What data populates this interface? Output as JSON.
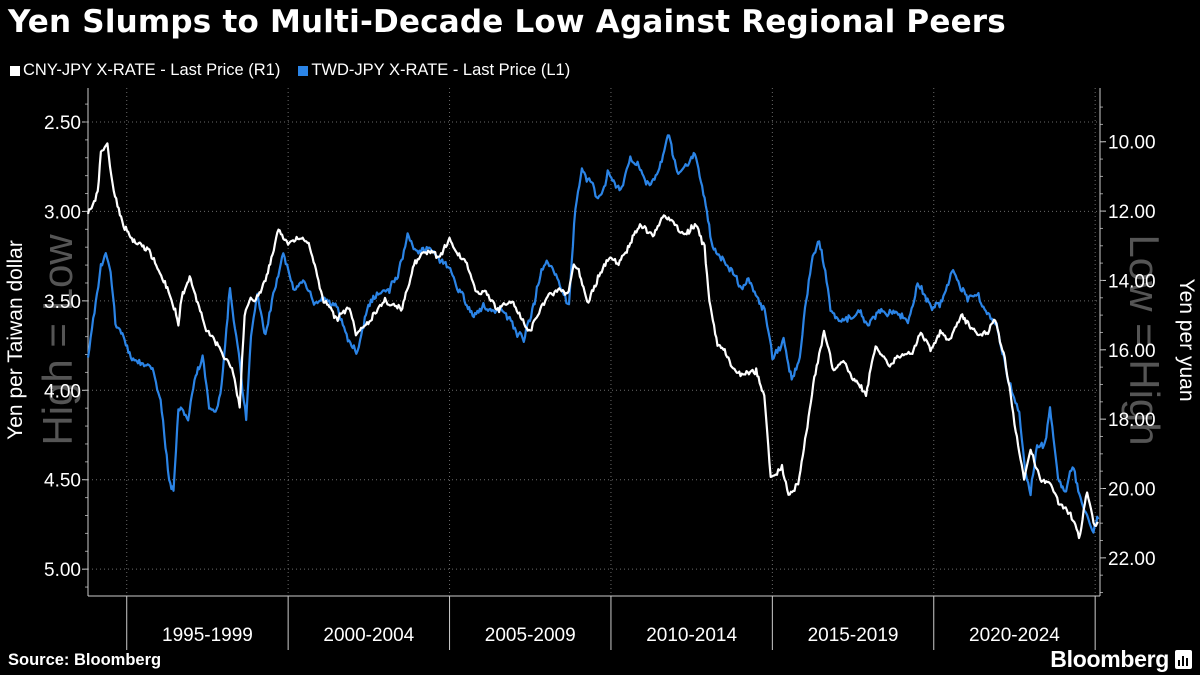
{
  "chart_data": {
    "type": "line",
    "title": "Yen Slumps to Multi-Decade Low Against Regional Peers",
    "source": "Source: Bloomberg",
    "brand": "Bloomberg",
    "left_axis": {
      "label": "Yen per Taiwan dollar",
      "ticks": [
        "2.50",
        "3.00",
        "3.50",
        "4.00",
        "4.50",
        "5.00"
      ],
      "range": [
        5.15,
        2.31
      ],
      "inverted": true,
      "watermark": "High = Low"
    },
    "right_axis": {
      "label": "Yen per yuan",
      "ticks": [
        "10.00",
        "12.00",
        "14.00",
        "16.00",
        "18.00",
        "20.00",
        "22.00"
      ],
      "range": [
        23.1,
        8.45
      ],
      "inverted": true,
      "watermark": "Low = High"
    },
    "x_axis": {
      "range": [
        1993.8,
        2025.15
      ],
      "categories": [
        "1995-1999",
        "2000-2004",
        "2005-2009",
        "2010-2014",
        "2015-2019",
        "2020-2024"
      ],
      "boundaries": [
        1995,
        2000,
        2005,
        2010,
        2015,
        2020,
        2025
      ]
    },
    "series": [
      {
        "name": "CNY-JPY X-RATE - Last Price (R1)",
        "axis": "right",
        "color": "#ffffff",
        "points": [
          [
            1993.8,
            12.0
          ],
          [
            1994.1,
            11.6
          ],
          [
            1994.2,
            10.4
          ],
          [
            1994.4,
            10.1
          ],
          [
            1994.6,
            11.5
          ],
          [
            1994.9,
            12.4
          ],
          [
            1995.3,
            12.9
          ],
          [
            1995.7,
            13.1
          ],
          [
            1995.95,
            13.6
          ],
          [
            1996.3,
            14.3
          ],
          [
            1996.5,
            14.9
          ],
          [
            1996.6,
            15.3
          ],
          [
            1996.7,
            14.5
          ],
          [
            1996.95,
            13.9
          ],
          [
            1997.2,
            14.6
          ],
          [
            1997.5,
            15.4
          ],
          [
            1997.8,
            15.8
          ],
          [
            1998.1,
            16.3
          ],
          [
            1998.3,
            16.7
          ],
          [
            1998.5,
            17.8
          ],
          [
            1998.65,
            15.0
          ],
          [
            1998.8,
            14.5
          ],
          [
            1999.0,
            14.6
          ],
          [
            1999.3,
            14.0
          ],
          [
            1999.7,
            12.6
          ],
          [
            2000.0,
            13.0
          ],
          [
            2000.3,
            12.8
          ],
          [
            2000.6,
            13.0
          ],
          [
            2000.9,
            13.8
          ],
          [
            2001.1,
            14.6
          ],
          [
            2001.5,
            15.0
          ],
          [
            2001.9,
            14.8
          ],
          [
            2002.1,
            15.5
          ],
          [
            2002.3,
            15.4
          ],
          [
            2002.7,
            15.0
          ],
          [
            2003.0,
            14.6
          ],
          [
            2003.5,
            14.8
          ],
          [
            2003.9,
            13.6
          ],
          [
            2004.3,
            13.1
          ],
          [
            2004.7,
            13.3
          ],
          [
            2005.0,
            12.9
          ],
          [
            2005.3,
            13.3
          ],
          [
            2005.5,
            13.5
          ],
          [
            2005.8,
            14.3
          ],
          [
            2006.2,
            14.4
          ],
          [
            2006.5,
            14.7
          ],
          [
            2006.9,
            14.6
          ],
          [
            2007.2,
            15.0
          ],
          [
            2007.5,
            15.5
          ],
          [
            2007.7,
            15.0
          ],
          [
            2008.0,
            14.5
          ],
          [
            2008.4,
            14.2
          ],
          [
            2008.65,
            14.4
          ],
          [
            2008.85,
            13.5
          ],
          [
            2009.0,
            13.7
          ],
          [
            2009.3,
            14.6
          ],
          [
            2009.6,
            13.9
          ],
          [
            2009.9,
            13.4
          ],
          [
            2010.2,
            13.6
          ],
          [
            2010.6,
            12.9
          ],
          [
            2010.9,
            12.4
          ],
          [
            2011.3,
            12.7
          ],
          [
            2011.6,
            12.2
          ],
          [
            2011.9,
            12.3
          ],
          [
            2012.2,
            12.7
          ],
          [
            2012.6,
            12.4
          ],
          [
            2012.9,
            13.1
          ],
          [
            2013.05,
            14.7
          ],
          [
            2013.3,
            15.9
          ],
          [
            2013.6,
            16.2
          ],
          [
            2013.9,
            16.6
          ],
          [
            2014.2,
            16.7
          ],
          [
            2014.5,
            16.6
          ],
          [
            2014.75,
            17.4
          ],
          [
            2014.95,
            19.7
          ],
          [
            2015.3,
            19.5
          ],
          [
            2015.5,
            20.3
          ],
          [
            2015.8,
            19.9
          ],
          [
            2016.05,
            18.4
          ],
          [
            2016.3,
            16.7
          ],
          [
            2016.6,
            15.4
          ],
          [
            2016.9,
            16.6
          ],
          [
            2017.2,
            16.3
          ],
          [
            2017.5,
            16.9
          ],
          [
            2017.9,
            17.3
          ],
          [
            2018.2,
            15.9
          ],
          [
            2018.6,
            16.5
          ],
          [
            2018.95,
            16.2
          ],
          [
            2019.3,
            16.1
          ],
          [
            2019.6,
            15.5
          ],
          [
            2019.9,
            15.9
          ],
          [
            2020.2,
            15.5
          ],
          [
            2020.5,
            15.7
          ],
          [
            2020.85,
            15.0
          ],
          [
            2021.1,
            15.3
          ],
          [
            2021.5,
            15.6
          ],
          [
            2021.9,
            15.2
          ],
          [
            2022.2,
            16.2
          ],
          [
            2022.5,
            18.1
          ],
          [
            2022.8,
            19.8
          ],
          [
            2023.0,
            18.9
          ],
          [
            2023.3,
            19.8
          ],
          [
            2023.6,
            20.0
          ],
          [
            2023.9,
            20.6
          ],
          [
            2024.2,
            20.7
          ],
          [
            2024.5,
            21.5
          ],
          [
            2024.75,
            20.1
          ],
          [
            2024.95,
            21.1
          ],
          [
            2025.1,
            21.0
          ]
        ]
      },
      {
        "name": "TWD-JPY X-RATE - Last Price (L1)",
        "axis": "left",
        "color": "#2b84e6",
        "points": [
          [
            1993.8,
            3.82
          ],
          [
            1994.0,
            3.55
          ],
          [
            1994.2,
            3.28
          ],
          [
            1994.35,
            3.22
          ],
          [
            1994.5,
            3.34
          ],
          [
            1994.65,
            3.62
          ],
          [
            1994.9,
            3.7
          ],
          [
            1995.2,
            3.8
          ],
          [
            1995.5,
            3.84
          ],
          [
            1995.8,
            3.88
          ],
          [
            1996.05,
            4.05
          ],
          [
            1996.2,
            4.3
          ],
          [
            1996.35,
            4.52
          ],
          [
            1996.45,
            4.56
          ],
          [
            1996.6,
            4.1
          ],
          [
            1996.9,
            4.16
          ],
          [
            1997.1,
            3.95
          ],
          [
            1997.35,
            3.79
          ],
          [
            1997.55,
            4.08
          ],
          [
            1997.75,
            4.13
          ],
          [
            1997.9,
            4.02
          ],
          [
            1998.05,
            3.75
          ],
          [
            1998.2,
            3.42
          ],
          [
            1998.35,
            3.64
          ],
          [
            1998.55,
            3.92
          ],
          [
            1998.7,
            4.15
          ],
          [
            1998.85,
            3.7
          ],
          [
            1999.05,
            3.44
          ],
          [
            1999.3,
            3.69
          ],
          [
            1999.5,
            3.5
          ],
          [
            1999.85,
            3.2
          ],
          [
            2000.2,
            3.43
          ],
          [
            2000.5,
            3.42
          ],
          [
            2000.8,
            3.52
          ],
          [
            2001.2,
            3.51
          ],
          [
            2001.5,
            3.53
          ],
          [
            2001.85,
            3.73
          ],
          [
            2002.15,
            3.77
          ],
          [
            2002.45,
            3.55
          ],
          [
            2002.75,
            3.45
          ],
          [
            2003.1,
            3.44
          ],
          [
            2003.4,
            3.35
          ],
          [
            2003.7,
            3.14
          ],
          [
            2004.0,
            3.24
          ],
          [
            2004.4,
            3.2
          ],
          [
            2004.7,
            3.27
          ],
          [
            2004.95,
            3.31
          ],
          [
            2005.2,
            3.42
          ],
          [
            2005.5,
            3.52
          ],
          [
            2005.75,
            3.61
          ],
          [
            2006.05,
            3.53
          ],
          [
            2006.3,
            3.56
          ],
          [
            2006.6,
            3.55
          ],
          [
            2006.9,
            3.6
          ],
          [
            2007.1,
            3.68
          ],
          [
            2007.3,
            3.7
          ],
          [
            2007.6,
            3.52
          ],
          [
            2007.85,
            3.34
          ],
          [
            2008.05,
            3.28
          ],
          [
            2008.3,
            3.38
          ],
          [
            2008.5,
            3.46
          ],
          [
            2008.7,
            3.52
          ],
          [
            2008.9,
            2.98
          ],
          [
            2009.1,
            2.78
          ],
          [
            2009.4,
            2.85
          ],
          [
            2009.6,
            2.95
          ],
          [
            2009.9,
            2.8
          ],
          [
            2010.3,
            2.87
          ],
          [
            2010.6,
            2.7
          ],
          [
            2010.9,
            2.76
          ],
          [
            2011.2,
            2.88
          ],
          [
            2011.5,
            2.77
          ],
          [
            2011.8,
            2.57
          ],
          [
            2012.05,
            2.77
          ],
          [
            2012.35,
            2.7
          ],
          [
            2012.6,
            2.66
          ],
          [
            2012.9,
            2.95
          ],
          [
            2013.15,
            3.2
          ],
          [
            2013.45,
            3.27
          ],
          [
            2013.75,
            3.33
          ],
          [
            2014.0,
            3.43
          ],
          [
            2014.3,
            3.4
          ],
          [
            2014.6,
            3.49
          ],
          [
            2014.8,
            3.55
          ],
          [
            2015.0,
            3.82
          ],
          [
            2015.35,
            3.72
          ],
          [
            2015.6,
            3.94
          ],
          [
            2015.85,
            3.8
          ],
          [
            2016.05,
            3.5
          ],
          [
            2016.25,
            3.25
          ],
          [
            2016.45,
            3.16
          ],
          [
            2016.6,
            3.3
          ],
          [
            2016.8,
            3.55
          ],
          [
            2017.1,
            3.6
          ],
          [
            2017.4,
            3.58
          ],
          [
            2017.7,
            3.56
          ],
          [
            2018.0,
            3.65
          ],
          [
            2018.3,
            3.55
          ],
          [
            2018.6,
            3.57
          ],
          [
            2018.9,
            3.56
          ],
          [
            2019.2,
            3.6
          ],
          [
            2019.5,
            3.4
          ],
          [
            2019.7,
            3.45
          ],
          [
            2019.95,
            3.54
          ],
          [
            2020.3,
            3.49
          ],
          [
            2020.6,
            3.34
          ],
          [
            2020.8,
            3.42
          ],
          [
            2021.05,
            3.52
          ],
          [
            2021.35,
            3.48
          ],
          [
            2021.65,
            3.55
          ],
          [
            2021.95,
            3.65
          ],
          [
            2022.2,
            3.85
          ],
          [
            2022.45,
            4.03
          ],
          [
            2022.65,
            4.12
          ],
          [
            2022.85,
            4.48
          ],
          [
            2023.0,
            4.58
          ],
          [
            2023.2,
            4.32
          ],
          [
            2023.45,
            4.3
          ],
          [
            2023.6,
            4.1
          ],
          [
            2023.85,
            4.5
          ],
          [
            2024.1,
            4.57
          ],
          [
            2024.3,
            4.42
          ],
          [
            2024.55,
            4.63
          ],
          [
            2024.75,
            4.69
          ],
          [
            2024.95,
            4.79
          ],
          [
            2025.1,
            4.72
          ]
        ]
      }
    ]
  }
}
